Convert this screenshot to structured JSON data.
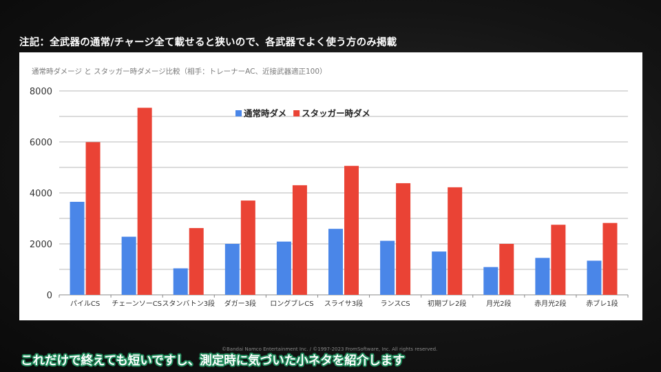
{
  "note": "注記：全武器の通常/チャージ全て載せると狭いので、各武器でよく使う方のみ掲載",
  "copyright": "©Bandai Namco Entertainment Inc. / ©1997-2023 FromSoftware, Inc. All rights reserved.",
  "subtitle": "これだけで終えても短いですし、測定時に気づいた小ネタを紹介します",
  "colors": {
    "normal": "#4a86e8",
    "stagger": "#ea4335",
    "grid": "#b7b7b7",
    "axis_text": "#333333",
    "subtitle_outline": "#1f8a5a"
  },
  "chart_data": {
    "type": "bar",
    "title": "通常時ダメージ と スタッガー時ダメージ比較（相手：トレーナーAC、近接武器適正100）",
    "xlabel": "",
    "ylabel": "",
    "ylim": [
      0,
      8000
    ],
    "yticks": [
      0,
      2000,
      4000,
      6000,
      8000
    ],
    "grid": true,
    "legend": "top-center",
    "categories": [
      "パイルCS",
      "チェーンソーCS",
      "スタンバトン3段",
      "ダガー3段",
      "ロングブレCS",
      "スライサ3段",
      "ランスCS",
      "初期ブレ2段",
      "月光2段",
      "赤月光2段",
      "赤ブレ1段"
    ],
    "series": [
      {
        "name": "通常時ダメ",
        "values": [
          3650,
          2280,
          1040,
          2000,
          2090,
          2590,
          2120,
          1700,
          1090,
          1450,
          1340
        ]
      },
      {
        "name": "スタッガー時ダメ",
        "values": [
          5990,
          7340,
          2620,
          3700,
          4300,
          5060,
          4380,
          4220,
          2000,
          2750,
          2820
        ]
      }
    ]
  }
}
